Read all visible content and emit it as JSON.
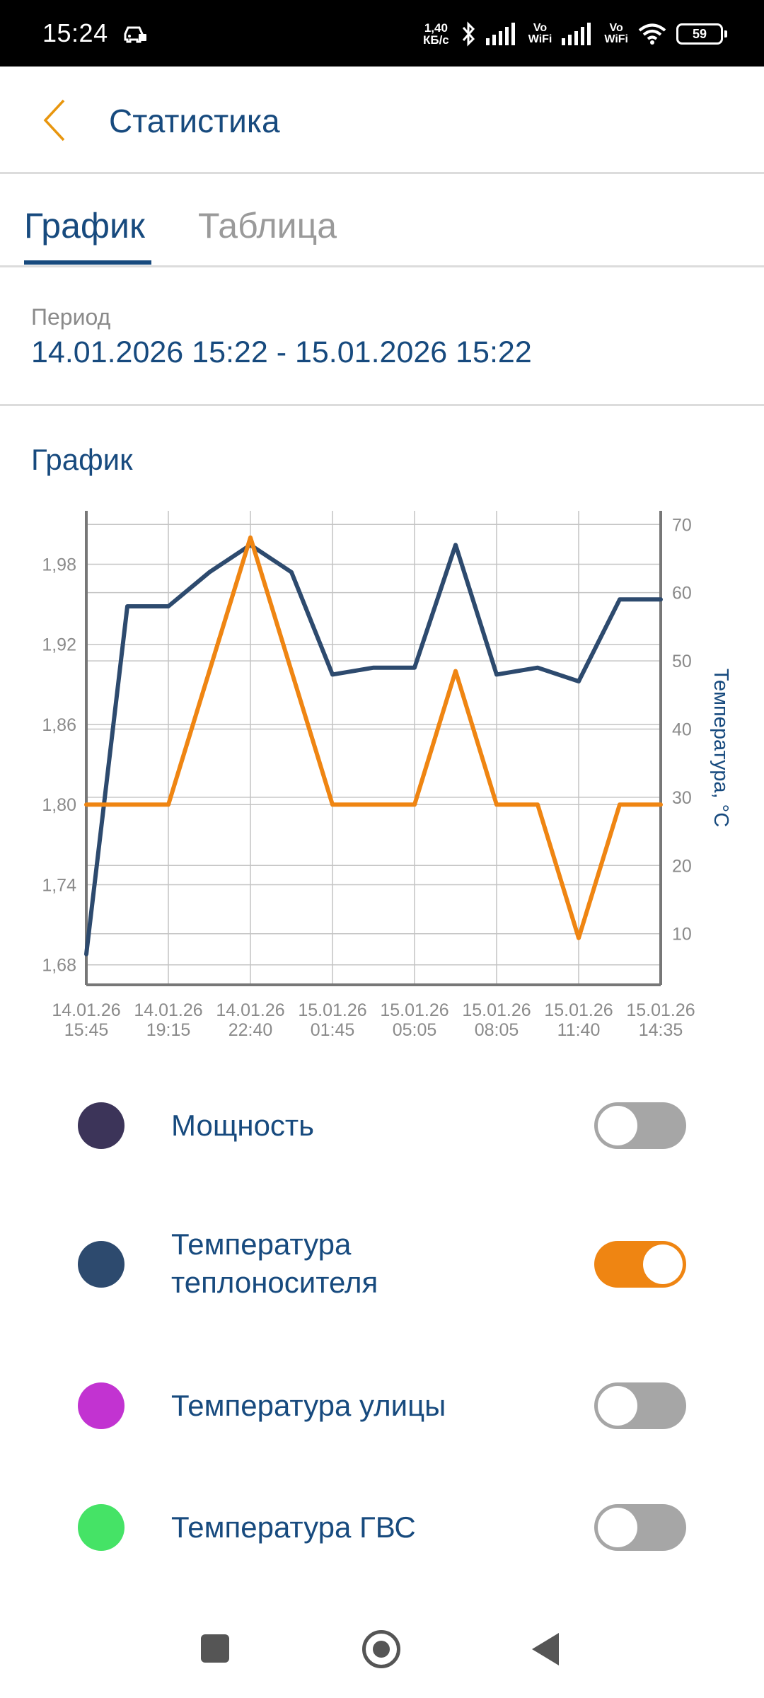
{
  "status_bar": {
    "time": "15:24",
    "net_speed_value": "1,40",
    "net_speed_unit": "КБ/с",
    "vo_wifi_top": "Vo",
    "vo_wifi_bottom": "WiFi",
    "battery": "59",
    "icons": [
      "car-lock-icon",
      "bluetooth-icon",
      "signal-icon",
      "wifi-icon",
      "battery-icon"
    ]
  },
  "header": {
    "title": "Статистика",
    "back_icon": "chevron-left-icon"
  },
  "tabs": [
    {
      "label": "График",
      "active": true
    },
    {
      "label": "Таблица",
      "active": false
    }
  ],
  "period": {
    "label": "Период",
    "value": "14.01.2026 15:22 - 15.01.2026 15:22"
  },
  "chart_heading": "График",
  "chart_data": {
    "type": "line",
    "title": "",
    "xlabel": "",
    "ylabel_left": "",
    "ylabel_right": "Температура, °C",
    "x_tick_labels": [
      [
        "14.01.26",
        "15:45"
      ],
      [
        "14.01.26",
        "19:15"
      ],
      [
        "14.01.26",
        "22:40"
      ],
      [
        "15.01.26",
        "01:45"
      ],
      [
        "15.01.26",
        "05:05"
      ],
      [
        "15.01.26",
        "08:05"
      ],
      [
        "15.01.26",
        "11:40"
      ],
      [
        "15.01.26",
        "14:35"
      ]
    ],
    "x_range": [
      0,
      14
    ],
    "left_axis": {
      "ticks": [
        "1,68",
        "1,74",
        "1,80",
        "1,86",
        "1,92",
        "1,98"
      ],
      "range": [
        1.665,
        2.02
      ]
    },
    "right_axis": {
      "ticks": [
        "10",
        "20",
        "30",
        "40",
        "50",
        "60",
        "70"
      ],
      "range": [
        2.5,
        72
      ]
    },
    "series": [
      {
        "name": "Температура теплоносителя",
        "axis": "right",
        "color": "#2d4a6e",
        "x": [
          0,
          1,
          2,
          3,
          4,
          5,
          6,
          7,
          8,
          9,
          10,
          11,
          12,
          13,
          14
        ],
        "values": [
          7,
          58,
          58,
          63,
          67,
          63,
          48,
          49,
          49,
          67,
          48,
          49,
          47,
          59,
          59
        ]
      },
      {
        "name": "Мощность (оранжевая линия)",
        "axis": "left",
        "color": "#ef8512",
        "x": [
          0,
          1,
          2,
          3,
          4,
          5,
          6,
          7,
          8,
          9,
          10,
          11,
          12,
          13,
          14
        ],
        "values": [
          1.8,
          1.8,
          1.8,
          1.9,
          2.0,
          1.9,
          1.8,
          1.8,
          1.8,
          1.9,
          1.8,
          1.8,
          1.7,
          1.8,
          1.8
        ]
      }
    ],
    "grid": true
  },
  "legend": [
    {
      "label": "Мощность",
      "color": "#3c3459",
      "toggle_on": false
    },
    {
      "label": "Температура теплоносителя",
      "line1": "Температура",
      "line2": "теплоносителя",
      "color": "#2d4a6e",
      "toggle_on": true
    },
    {
      "label": "Температура улицы",
      "color": "#c233d1",
      "toggle_on": false
    },
    {
      "label": "Температура ГВС",
      "color": "#45e366",
      "toggle_on": false
    }
  ],
  "nav_bar": {
    "icons": [
      "recent-apps-icon",
      "home-icon",
      "back-icon"
    ]
  }
}
